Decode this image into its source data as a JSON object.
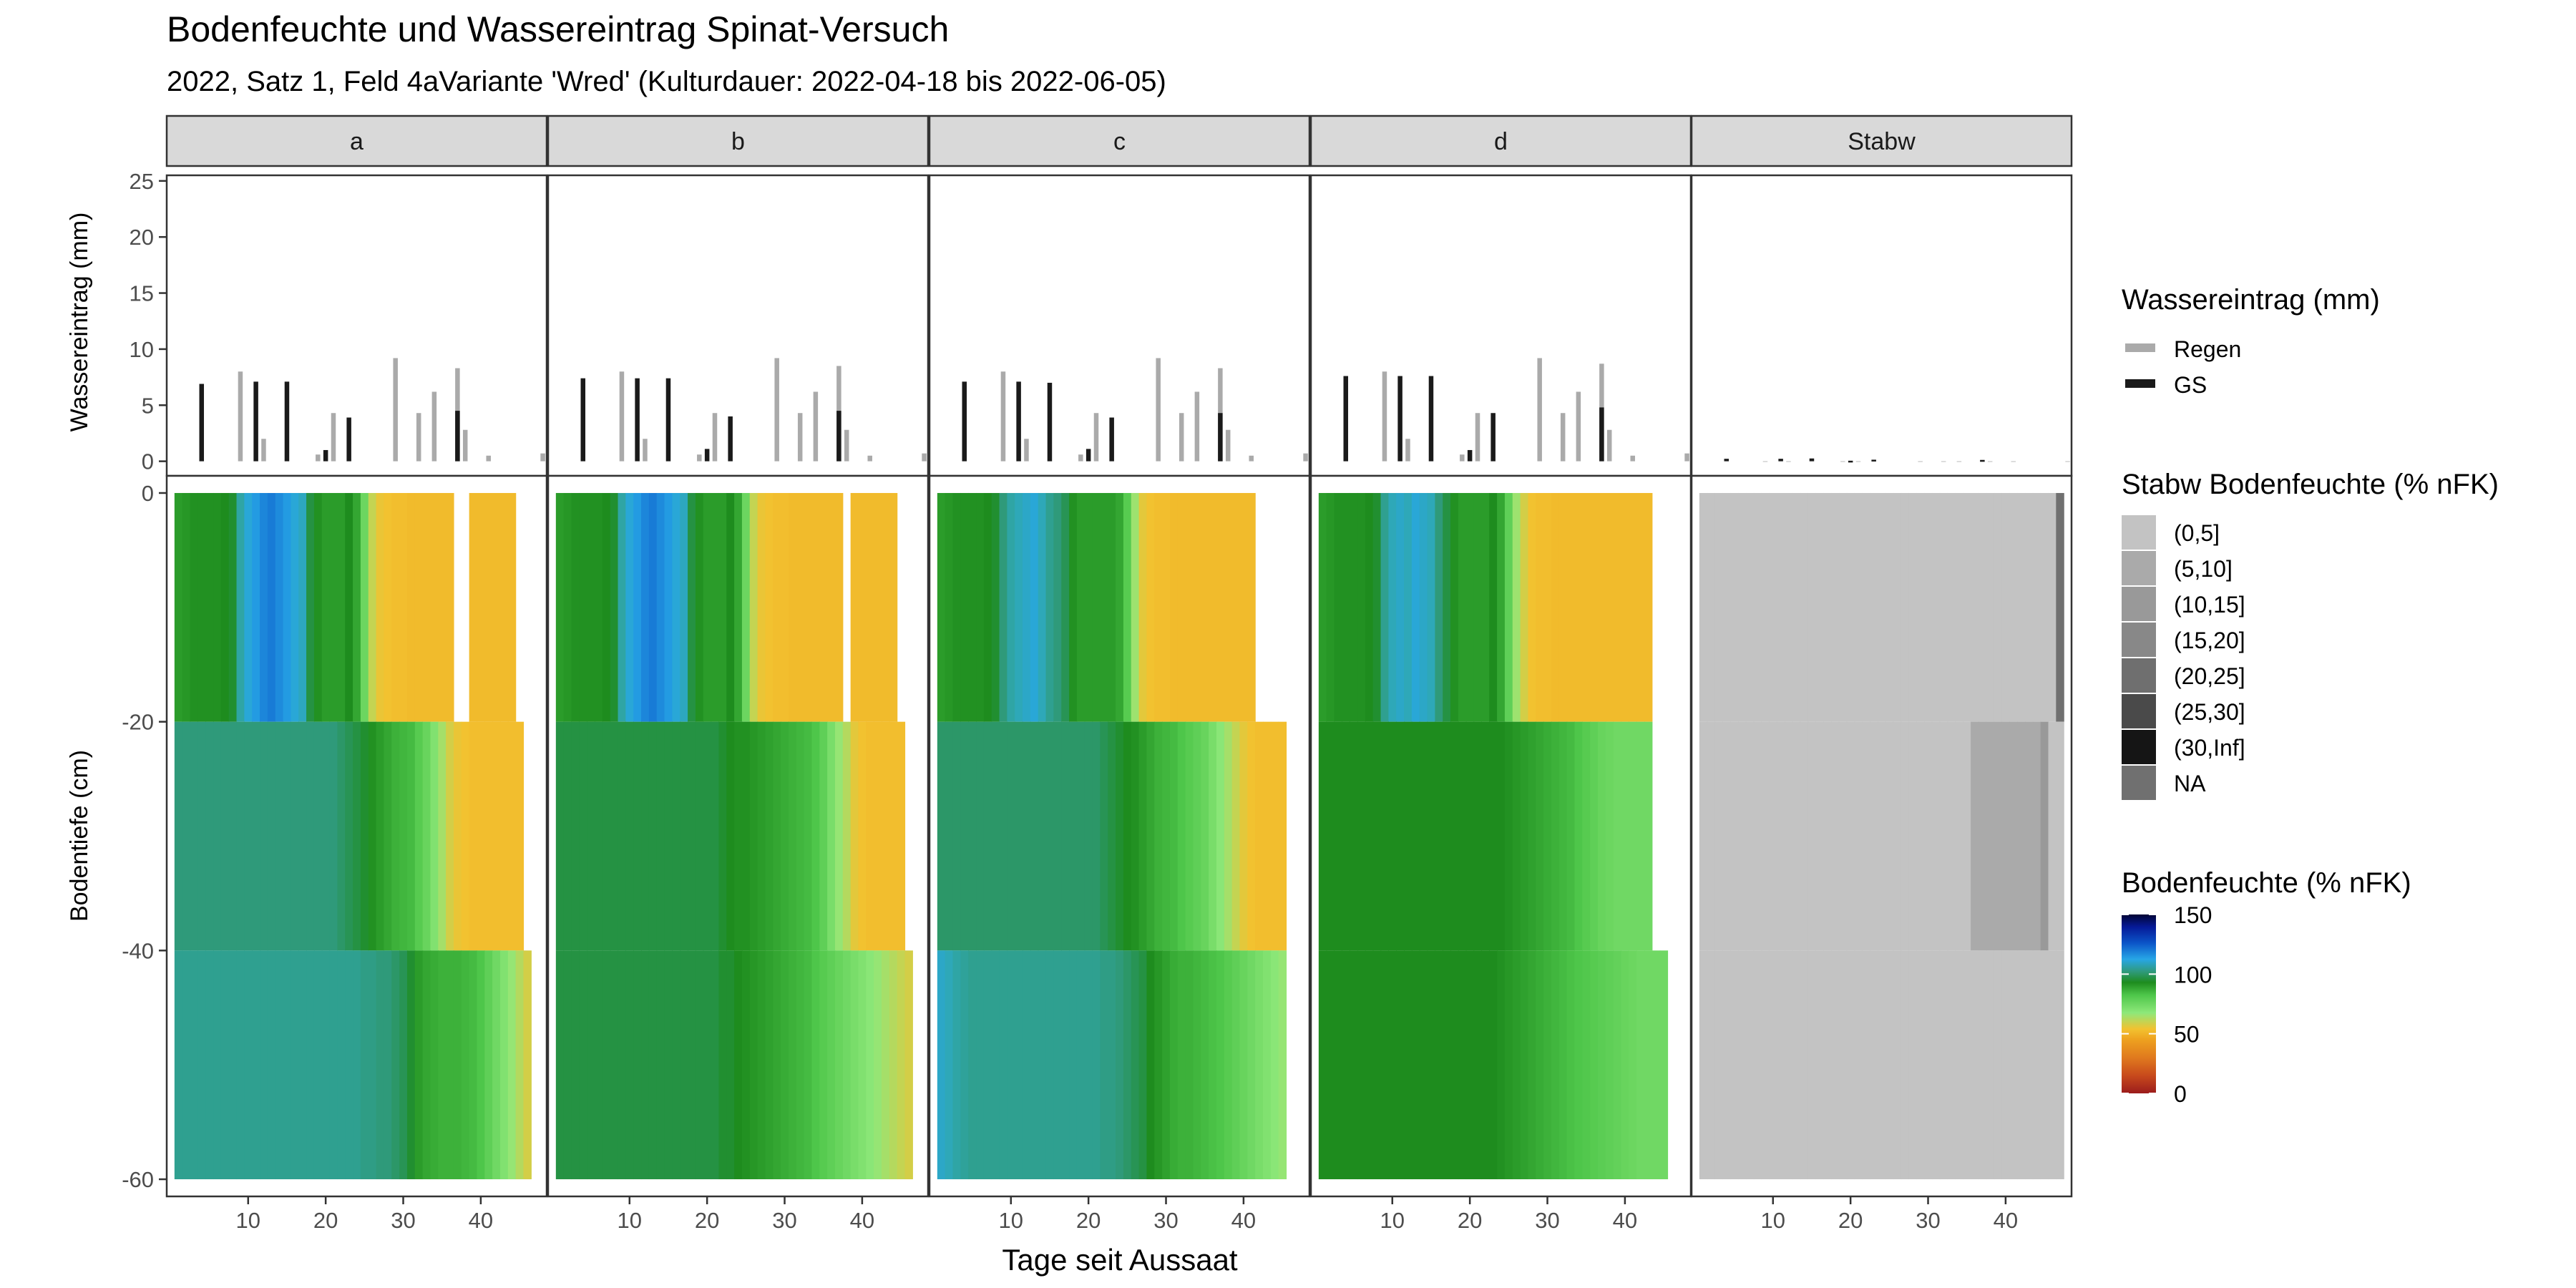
{
  "title": "Bodenfeuchte und Wassereintrag Spinat-Versuch",
  "subtitle": "2022, Satz 1, Feld 4aVariante 'Wred' (Kulturdauer: 2022-04-18 bis 2022-06-05)",
  "xlabel": "Tage seit Aussaat",
  "colors": {
    "regen": "#aaaaaa",
    "gs": "#1a1a1a",
    "missing": "#c0c0c0"
  },
  "chart_data": {
    "type": "heatmap",
    "facets": [
      "a",
      "b",
      "c",
      "d",
      "Stabw"
    ],
    "x_ticks": [
      10,
      20,
      30,
      40
    ],
    "xlim": [
      -0.5,
      48.5
    ],
    "wasser": {
      "ylabel": "Wassereintrag (mm)",
      "y_ticks": [
        0,
        5,
        10,
        15,
        20,
        25
      ],
      "ylim": [
        -1.3,
        25.5
      ],
      "legend_title": "Wassereintrag (mm)",
      "legend": [
        {
          "label": "Regen",
          "color": "#aaaaaa"
        },
        {
          "label": "GS",
          "color": "#1a1a1a"
        }
      ],
      "regen_days": [
        9,
        12,
        19,
        21,
        29,
        32,
        34,
        37,
        38,
        41,
        48
      ],
      "regen_values": {
        "a": [
          8.0,
          2.0,
          0.6,
          4.3,
          9.2,
          4.3,
          6.2,
          8.3,
          2.8,
          0.5,
          0.7
        ],
        "b": [
          8.0,
          2.0,
          0.6,
          4.3,
          9.2,
          4.3,
          6.2,
          8.5,
          2.8,
          0.5,
          0.7
        ],
        "c": [
          8.0,
          2.0,
          0.6,
          4.3,
          9.2,
          4.3,
          6.2,
          8.3,
          2.8,
          0.5,
          0.7
        ],
        "d": [
          8.0,
          2.0,
          0.6,
          4.3,
          9.2,
          4.3,
          6.2,
          8.7,
          2.8,
          0.5,
          0.7
        ],
        "Stabw": [
          0,
          0,
          0,
          0,
          0,
          0,
          0,
          0,
          0,
          0,
          0
        ]
      },
      "gs_days": [
        4,
        11,
        15,
        20,
        23,
        37
      ],
      "gs_values": {
        "a": [
          6.9,
          7.1,
          7.1,
          1.0,
          3.9,
          4.5
        ],
        "b": [
          7.4,
          7.4,
          7.4,
          1.1,
          4.0,
          4.5
        ],
        "c": [
          7.1,
          7.1,
          7.0,
          1.1,
          3.9,
          4.3
        ],
        "d": [
          7.6,
          7.6,
          7.6,
          1.0,
          4.3,
          4.8
        ],
        "Stabw": [
          0.22,
          0.22,
          0.25,
          0.05,
          0.14,
          0.12
        ]
      }
    },
    "boden": {
      "ylabel": "Bodentiefe (cm)",
      "y_ticks": [
        0,
        -20,
        -40,
        -60
      ],
      "ylim": [
        -61.5,
        1.5
      ],
      "legend_title": "Bodenfeuchte (% nFK)",
      "scale_ticks": [
        150,
        100,
        50,
        0
      ],
      "scale_limits": [
        0,
        150
      ],
      "layers": [
        {
          "top": 0,
          "bottom": -20
        },
        {
          "top": -20,
          "bottom": -40
        },
        {
          "top": -40,
          "bottom": -60
        }
      ],
      "day_start": 1,
      "values": {
        "a": [
          [
            90,
            91,
            92,
            92,
            92,
            92,
            93,
            94,
            102,
            108,
            112,
            116,
            118,
            115,
            112,
            108,
            105,
            95,
            92,
            90,
            90,
            90,
            93,
            88,
            75,
            60,
            55,
            54,
            53,
            53,
            52,
            52,
            52,
            52,
            52,
            52,
            null,
            null,
            52,
            52,
            52,
            52,
            52,
            52,
            null,
            null,
            null,
            null
          ],
          [
            98,
            98,
            98,
            98,
            98,
            98,
            98,
            98,
            98,
            98,
            98,
            98,
            98,
            98,
            98,
            98,
            98,
            98,
            98,
            98,
            98,
            97,
            96,
            95,
            94,
            92,
            90,
            88,
            86,
            85,
            84,
            80,
            76,
            70,
            64,
            58,
            55,
            54,
            53,
            53,
            53,
            53,
            53,
            53,
            53,
            null,
            null,
            null
          ],
          [
            100,
            100,
            100,
            100,
            100,
            100,
            100,
            100,
            100,
            100,
            100,
            100,
            100,
            100,
            100,
            100,
            100,
            100,
            100,
            100,
            100,
            100,
            100,
            100,
            99,
            99,
            98,
            98,
            97,
            96,
            94,
            90,
            88,
            87,
            86,
            86,
            86,
            85,
            84,
            82,
            78,
            74,
            70,
            66,
            62,
            58,
            null,
            null
          ]
        ],
        "b": [
          [
            90,
            91,
            92,
            92,
            92,
            92,
            93,
            94,
            102,
            108,
            112,
            116,
            118,
            115,
            112,
            108,
            105,
            95,
            92,
            90,
            90,
            90,
            93,
            88,
            75,
            60,
            55,
            54,
            53,
            53,
            52,
            52,
            52,
            52,
            52,
            52,
            52,
            null,
            52,
            52,
            52,
            52,
            52,
            52,
            null,
            null,
            null,
            null
          ],
          [
            95,
            95,
            95,
            95,
            95,
            95,
            95,
            95,
            95,
            95,
            95,
            95,
            95,
            95,
            95,
            95,
            95,
            95,
            95,
            95,
            95,
            94,
            93,
            92,
            92,
            91,
            90,
            89,
            88,
            87,
            86,
            85,
            84,
            82,
            78,
            72,
            66,
            62,
            56,
            54,
            53,
            53,
            53,
            53,
            53,
            null,
            null,
            null
          ],
          [
            95,
            95,
            95,
            95,
            95,
            95,
            95,
            95,
            95,
            95,
            95,
            95,
            95,
            95,
            95,
            95,
            95,
            95,
            95,
            95,
            95,
            94,
            94,
            93,
            92,
            91,
            90,
            89,
            88,
            87,
            86,
            85,
            84,
            82,
            80,
            78,
            76,
            74,
            72,
            70,
            68,
            66,
            64,
            62,
            60,
            58,
            null,
            null
          ]
        ],
        "c": [
          [
            90,
            91,
            92,
            92,
            92,
            92,
            93,
            94,
            98,
            102,
            104,
            106,
            108,
            104,
            100,
            98,
            96,
            92,
            90,
            90,
            90,
            90,
            90,
            88,
            80,
            65,
            56,
            54,
            53,
            53,
            52,
            52,
            52,
            52,
            52,
            52,
            52,
            52,
            52,
            52,
            52,
            null,
            null,
            null,
            null,
            null,
            null,
            null
          ],
          [
            97,
            97,
            97,
            97,
            97,
            97,
            97,
            97,
            97,
            97,
            97,
            97,
            97,
            97,
            97,
            97,
            97,
            97,
            97,
            97,
            97,
            96,
            95,
            94,
            93,
            92,
            90,
            88,
            86,
            85,
            84,
            82,
            80,
            78,
            76,
            72,
            68,
            64,
            60,
            56,
            54,
            53,
            53,
            53,
            53,
            null,
            null,
            null
          ],
          [
            106,
            104,
            102,
            101,
            100,
            100,
            100,
            100,
            100,
            100,
            100,
            100,
            100,
            100,
            100,
            100,
            100,
            100,
            100,
            100,
            100,
            99,
            99,
            98,
            97,
            96,
            95,
            93,
            91,
            89,
            87,
            86,
            86,
            85,
            84,
            83,
            82,
            80,
            78,
            76,
            74,
            72,
            70,
            68,
            66,
            null,
            null,
            null
          ]
        ],
        "d": [
          [
            90,
            91,
            92,
            92,
            92,
            92,
            93,
            94,
            100,
            104,
            106,
            104,
            108,
            106,
            104,
            98,
            95,
            92,
            90,
            90,
            90,
            90,
            93,
            88,
            78,
            65,
            58,
            54,
            53,
            53,
            52,
            52,
            52,
            52,
            52,
            52,
            52,
            52,
            52,
            52,
            52,
            52,
            52,
            null,
            null,
            null,
            null,
            null
          ],
          [
            93,
            93,
            93,
            93,
            93,
            93,
            93,
            93,
            93,
            93,
            93,
            93,
            93,
            93,
            93,
            93,
            93,
            93,
            93,
            93,
            93,
            93,
            93,
            93,
            92,
            91,
            90,
            89,
            88,
            87,
            86,
            85,
            84,
            82,
            80,
            78,
            76,
            75,
            74,
            74,
            74,
            74,
            74,
            null,
            null,
            null,
            null,
            null
          ],
          [
            93,
            93,
            93,
            93,
            93,
            93,
            93,
            93,
            93,
            93,
            93,
            93,
            93,
            93,
            93,
            93,
            93,
            93,
            93,
            93,
            93,
            93,
            93,
            92,
            91,
            90,
            89,
            88,
            87,
            86,
            85,
            84,
            83,
            82,
            81,
            80,
            79,
            78,
            77,
            76,
            75,
            74,
            74,
            74,
            74,
            null,
            null,
            null
          ]
        ]
      },
      "stabw": {
        "legend_title": "Stabw Bodenfeuchte (% nFK)",
        "legend": [
          {
            "label": "(0,5]",
            "color": "#c3c3c3"
          },
          {
            "label": "(5,10]",
            "color": "#aaaaaa"
          },
          {
            "label": "(10,15]",
            "color": "#999999"
          },
          {
            "label": "(15,20]",
            "color": "#888888"
          },
          {
            "label": "(20,25]",
            "color": "#6f6f6f"
          },
          {
            "label": "(25,30]",
            "color": "#4a4a4a"
          },
          {
            "label": "(30,Inf]",
            "color": "#151515"
          },
          {
            "label": "NA",
            "color": "#707070"
          }
        ],
        "classes": [
          [
            0,
            0,
            0,
            0,
            0,
            0,
            0,
            0,
            0,
            0,
            0,
            0,
            0,
            0,
            0,
            0,
            0,
            0,
            0,
            0,
            0,
            0,
            0,
            0,
            0,
            0,
            0,
            0,
            0,
            0,
            0,
            0,
            0,
            0,
            0,
            0,
            0,
            0,
            0,
            0,
            0,
            0,
            0,
            0,
            0,
            0,
            7,
            null
          ],
          [
            0,
            0,
            0,
            0,
            0,
            0,
            0,
            0,
            0,
            0,
            0,
            0,
            0,
            0,
            0,
            0,
            0,
            0,
            0,
            0,
            0,
            0,
            0,
            0,
            0,
            0,
            0,
            0,
            0,
            0,
            0,
            0,
            0,
            0,
            0,
            1,
            1,
            1,
            1,
            1,
            1,
            1,
            1,
            1,
            2,
            0,
            0,
            null
          ],
          [
            0,
            0,
            0,
            0,
            0,
            0,
            0,
            0,
            0,
            0,
            0,
            0,
            0,
            0,
            0,
            0,
            0,
            0,
            0,
            0,
            0,
            0,
            0,
            0,
            0,
            0,
            0,
            0,
            0,
            0,
            0,
            0,
            0,
            0,
            0,
            0,
            0,
            0,
            0,
            0,
            0,
            0,
            0,
            0,
            0,
            0,
            0,
            null
          ]
        ]
      }
    }
  }
}
